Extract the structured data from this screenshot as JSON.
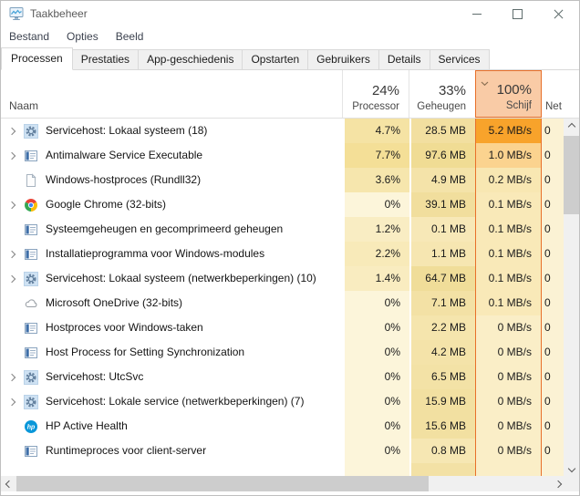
{
  "window": {
    "title": "Taakbeheer"
  },
  "menu_bar": {
    "items": [
      {
        "label": "Bestand"
      },
      {
        "label": "Opties"
      },
      {
        "label": "Beeld"
      }
    ]
  },
  "tabs": [
    {
      "label": "Processen",
      "active": true
    },
    {
      "label": "Prestaties",
      "active": false
    },
    {
      "label": "App-geschiedenis",
      "active": false
    },
    {
      "label": "Opstarten",
      "active": false
    },
    {
      "label": "Gebruikers",
      "active": false
    },
    {
      "label": "Details",
      "active": false
    },
    {
      "label": "Services",
      "active": false
    }
  ],
  "table": {
    "columns": {
      "name": {
        "label": "Naam"
      },
      "cpu": {
        "usage": "24%",
        "label": "Processor"
      },
      "memory": {
        "usage": "33%",
        "label": "Geheugen"
      },
      "disk": {
        "usage": "100%",
        "label": "Schijf",
        "sorted": true
      },
      "network": {
        "label": "Net"
      }
    },
    "processes": [
      {
        "name": "Servicehost: Lokaal systeem (18)",
        "icon": "services-gear-icon",
        "expandable": true,
        "cpu": "4.7%",
        "memory": "28.5 MB",
        "disk": "5.2 MB/s",
        "network": "0",
        "cpu_bg": "#f5e3a4",
        "mem_bg": "#f2dfa0",
        "disk_bg": "#f8a32b",
        "net_bg": "#fbf2d4"
      },
      {
        "name": "Antimalware Service Executable",
        "icon": "app-window-icon",
        "expandable": true,
        "cpu": "7.7%",
        "memory": "97.6 MB",
        "disk": "1.0 MB/s",
        "network": "0",
        "cpu_bg": "#f4df97",
        "mem_bg": "#f0dc94",
        "disk_bg": "#fbd38f",
        "net_bg": "#fbf2d4"
      },
      {
        "name": "Windows-hostproces (Rundll32)",
        "icon": "document-icon",
        "expandable": false,
        "cpu": "3.6%",
        "memory": "4.9 MB",
        "disk": "0.2 MB/s",
        "network": "0",
        "cpu_bg": "#f6e6ad",
        "mem_bg": "#f4e3a9",
        "disk_bg": "#f8e7b2",
        "net_bg": "#fbf2d4"
      },
      {
        "name": "Google Chrome (32-bits)",
        "icon": "chrome-icon",
        "expandable": true,
        "cpu": "0%",
        "memory": "39.1 MB",
        "disk": "0.1 MB/s",
        "network": "0",
        "cpu_bg": "#fcf5da",
        "mem_bg": "#f1de9d",
        "disk_bg": "#f9e9b8",
        "net_bg": "#fbf2d4"
      },
      {
        "name": "Systeemgeheugen en gecomprimeerd geheugen",
        "icon": "app-window-icon",
        "expandable": false,
        "cpu": "1.2%",
        "memory": "0.1 MB",
        "disk": "0.1 MB/s",
        "network": "0",
        "cpu_bg": "#f9edc3",
        "mem_bg": "#f7e8b7",
        "disk_bg": "#f9e9b8",
        "net_bg": "#fbf2d4"
      },
      {
        "name": "Installatieprogramma voor Windows-modules",
        "icon": "app-window-icon",
        "expandable": true,
        "cpu": "2.2%",
        "memory": "1.1 MB",
        "disk": "0.1 MB/s",
        "network": "0",
        "cpu_bg": "#f8eab9",
        "mem_bg": "#f6e6b1",
        "disk_bg": "#f9e9b8",
        "net_bg": "#fbf2d4"
      },
      {
        "name": "Servicehost: Lokaal systeem (netwerkbeperkingen) (10)",
        "icon": "services-gear-icon",
        "expandable": true,
        "cpu": "1.4%",
        "memory": "64.7 MB",
        "disk": "0.1 MB/s",
        "network": "0",
        "cpu_bg": "#f9ecc0",
        "mem_bg": "#f0dd99",
        "disk_bg": "#f9e9b8",
        "net_bg": "#fbf2d4"
      },
      {
        "name": "Microsoft OneDrive (32-bits)",
        "icon": "onedrive-cloud-icon",
        "expandable": false,
        "cpu": "0%",
        "memory": "7.1 MB",
        "disk": "0.1 MB/s",
        "network": "0",
        "cpu_bg": "#fcf5da",
        "mem_bg": "#f3e1a5",
        "disk_bg": "#f9e9b8",
        "net_bg": "#fbf2d4"
      },
      {
        "name": "Hostproces voor Windows-taken",
        "icon": "app-window-icon",
        "expandable": false,
        "cpu": "0%",
        "memory": "2.2 MB",
        "disk": "0 MB/s",
        "network": "0",
        "cpu_bg": "#fcf5da",
        "mem_bg": "#f5e5ad",
        "disk_bg": "#faeec7",
        "net_bg": "#fbf2d4"
      },
      {
        "name": "Host Process for Setting Synchronization",
        "icon": "app-window-icon",
        "expandable": false,
        "cpu": "0%",
        "memory": "4.2 MB",
        "disk": "0 MB/s",
        "network": "0",
        "cpu_bg": "#fcf5da",
        "mem_bg": "#f4e3a9",
        "disk_bg": "#faeec7",
        "net_bg": "#fbf2d4"
      },
      {
        "name": "Servicehost: UtcSvc",
        "icon": "services-gear-icon",
        "expandable": true,
        "cpu": "0%",
        "memory": "6.5 MB",
        "disk": "0 MB/s",
        "network": "0",
        "cpu_bg": "#fcf5da",
        "mem_bg": "#f3e2a6",
        "disk_bg": "#faeec7",
        "net_bg": "#fbf2d4"
      },
      {
        "name": "Servicehost: Lokale service (netwerkbeperkingen) (7)",
        "icon": "services-gear-icon",
        "expandable": true,
        "cpu": "0%",
        "memory": "15.9 MB",
        "disk": "0 MB/s",
        "network": "0",
        "cpu_bg": "#fcf5da",
        "mem_bg": "#f2e0a1",
        "disk_bg": "#faeec7",
        "net_bg": "#fbf2d4"
      },
      {
        "name": "HP Active Health",
        "icon": "hp-icon",
        "expandable": false,
        "cpu": "0%",
        "memory": "15.6 MB",
        "disk": "0 MB/s",
        "network": "0",
        "cpu_bg": "#fcf5da",
        "mem_bg": "#f2e0a1",
        "disk_bg": "#faeec7",
        "net_bg": "#fbf2d4"
      },
      {
        "name": "Runtimeproces voor client-server",
        "icon": "app-window-icon",
        "expandable": false,
        "cpu": "0%",
        "memory": "0.8 MB",
        "disk": "0 MB/s",
        "network": "0",
        "cpu_bg": "#fcf5da",
        "mem_bg": "#f6e7b3",
        "disk_bg": "#faeec7",
        "net_bg": "#fbf2d4"
      },
      {
        "name": "",
        "icon": "",
        "expandable": false,
        "partial": true,
        "cpu": "",
        "memory": "",
        "disk": "",
        "network": "",
        "cpu_bg": "#fcf5da",
        "mem_bg": "#f3e1a5",
        "disk_bg": "#faeec7",
        "net_bg": "#fbf2d4"
      }
    ]
  },
  "colors": {
    "sort_column_border": "#e8702a",
    "sort_header_bg": "#f9cba6",
    "disk_hot_cell": "#f8a32b",
    "scrollbar_thumb": "#cdcdcd",
    "scrollbar_track": "#f0f0f0"
  }
}
